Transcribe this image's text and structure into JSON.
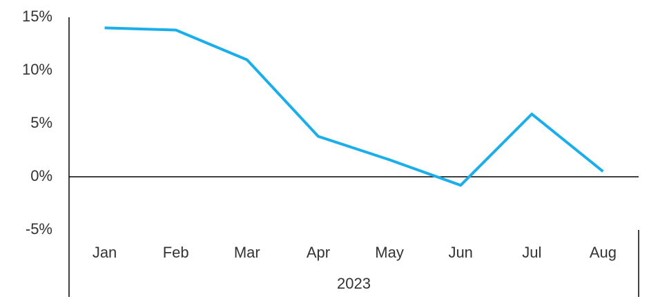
{
  "chart_data": {
    "type": "line",
    "categories": [
      "Jan",
      "Feb",
      "Mar",
      "Apr",
      "May",
      "Jun",
      "Jul",
      "Aug"
    ],
    "group_label": "2023",
    "values": [
      14.0,
      13.8,
      11.0,
      3.8,
      1.6,
      -0.8,
      5.9,
      0.5
    ],
    "color": "#1aaeea",
    "ylim": [
      -5,
      15
    ],
    "yticks": [
      {
        "value": -5,
        "label": "-5%"
      },
      {
        "value": 0,
        "label": "0%"
      },
      {
        "value": 5,
        "label": "5%"
      },
      {
        "value": 10,
        "label": "10%"
      },
      {
        "value": 15,
        "label": "15%"
      }
    ],
    "grid": false
  }
}
